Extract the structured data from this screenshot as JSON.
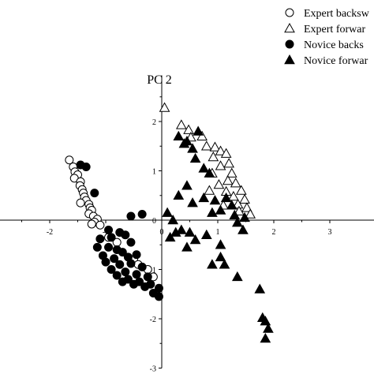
{
  "chart_data": {
    "type": "scatter",
    "title": "PC 2",
    "xlabel": "",
    "ylabel": "",
    "xlim": [
      -2.6,
      3
    ],
    "ylim": [
      -3,
      3
    ],
    "x_ticks": [
      "-2",
      "-1",
      "0",
      "1",
      "2",
      "3"
    ],
    "y_ticks": [
      "2",
      "1",
      "0",
      "-1",
      "-2",
      "-3"
    ],
    "grid": false,
    "legend_position": "top-right",
    "series": [
      {
        "name": "Expert backsw",
        "marker": "circle-open",
        "color": "#000000",
        "points": [
          [
            -1.65,
            1.22
          ],
          [
            -1.58,
            1.08
          ],
          [
            -1.55,
            0.98
          ],
          [
            -1.5,
            0.92
          ],
          [
            -1.56,
            0.85
          ],
          [
            -1.45,
            0.78
          ],
          [
            -1.46,
            0.7
          ],
          [
            -1.42,
            0.62
          ],
          [
            -1.4,
            0.55
          ],
          [
            -1.38,
            0.47
          ],
          [
            -1.35,
            0.4
          ],
          [
            -1.45,
            0.35
          ],
          [
            -1.3,
            0.32
          ],
          [
            -1.28,
            0.25
          ],
          [
            -1.25,
            0.2
          ],
          [
            -1.3,
            0.13
          ],
          [
            -1.22,
            0.08
          ],
          [
            -1.15,
            0.02
          ],
          [
            -1.2,
            -0.04
          ],
          [
            -1.1,
            -0.1
          ],
          [
            -1.25,
            -0.08
          ],
          [
            -0.95,
            -0.35
          ],
          [
            -0.8,
            -0.45
          ],
          [
            -0.5,
            -0.8
          ],
          [
            -0.42,
            -0.9
          ],
          [
            -0.25,
            -1.0
          ],
          [
            -0.15,
            -1.15
          ]
        ]
      },
      {
        "name": "Expert forwar",
        "marker": "triangle-open",
        "color": "#000000",
        "points": [
          [
            0.05,
            2.28
          ],
          [
            0.35,
            1.93
          ],
          [
            0.48,
            1.83
          ],
          [
            0.52,
            1.68
          ],
          [
            0.72,
            1.7
          ],
          [
            0.8,
            1.5
          ],
          [
            0.95,
            1.48
          ],
          [
            1.05,
            1.4
          ],
          [
            0.92,
            1.28
          ],
          [
            1.15,
            1.35
          ],
          [
            1.2,
            1.15
          ],
          [
            1.05,
            1.1
          ],
          [
            0.9,
            0.95
          ],
          [
            1.25,
            0.95
          ],
          [
            1.18,
            0.8
          ],
          [
            1.02,
            0.72
          ],
          [
            1.32,
            0.75
          ],
          [
            0.85,
            0.6
          ],
          [
            1.15,
            0.58
          ],
          [
            1.42,
            0.6
          ],
          [
            1.28,
            0.48
          ],
          [
            1.48,
            0.42
          ],
          [
            1.36,
            0.32
          ],
          [
            1.1,
            0.3
          ],
          [
            1.52,
            0.25
          ],
          [
            1.58,
            0.12
          ],
          [
            1.38,
            0.18
          ]
        ]
      },
      {
        "name": "Novice backs",
        "marker": "circle-filled",
        "color": "#000000",
        "points": [
          [
            -1.45,
            1.12
          ],
          [
            -1.35,
            1.08
          ],
          [
            -1.2,
            0.55
          ],
          [
            -0.35,
            0.12
          ],
          [
            -0.55,
            0.08
          ],
          [
            -0.95,
            -0.2
          ],
          [
            -0.75,
            -0.25
          ],
          [
            -0.65,
            -0.3
          ],
          [
            -0.9,
            -0.35
          ],
          [
            -1.1,
            -0.38
          ],
          [
            -0.55,
            -0.45
          ],
          [
            -1.15,
            -0.55
          ],
          [
            -0.95,
            -0.55
          ],
          [
            -0.8,
            -0.6
          ],
          [
            -0.7,
            -0.65
          ],
          [
            -1.05,
            -0.72
          ],
          [
            -0.85,
            -0.78
          ],
          [
            -0.6,
            -0.75
          ],
          [
            -0.45,
            -0.7
          ],
          [
            -1.0,
            -0.85
          ],
          [
            -0.75,
            -0.9
          ],
          [
            -0.55,
            -0.88
          ],
          [
            -0.35,
            -0.95
          ],
          [
            -0.9,
            -1.0
          ],
          [
            -0.65,
            -1.05
          ],
          [
            -0.45,
            -1.1
          ],
          [
            -0.25,
            -1.15
          ],
          [
            -0.8,
            -1.12
          ],
          [
            -0.6,
            -1.2
          ],
          [
            -0.4,
            -1.25
          ],
          [
            -0.2,
            -1.3
          ],
          [
            -0.05,
            -1.38
          ],
          [
            -0.15,
            -1.48
          ],
          [
            -0.05,
            -1.55
          ],
          [
            -0.3,
            -1.35
          ],
          [
            -0.5,
            -1.3
          ],
          [
            -0.7,
            -1.25
          ]
        ]
      },
      {
        "name": "Novice forwar",
        "marker": "triangle-filled",
        "color": "#000000",
        "points": [
          [
            0.3,
            1.7
          ],
          [
            0.45,
            1.6
          ],
          [
            0.55,
            1.45
          ],
          [
            0.65,
            1.8
          ],
          [
            0.4,
            1.55
          ],
          [
            0.6,
            1.25
          ],
          [
            0.75,
            1.05
          ],
          [
            0.85,
            0.95
          ],
          [
            0.45,
            0.7
          ],
          [
            0.3,
            0.5
          ],
          [
            0.55,
            0.35
          ],
          [
            0.75,
            0.45
          ],
          [
            0.95,
            0.4
          ],
          [
            1.15,
            0.45
          ],
          [
            1.25,
            0.3
          ],
          [
            1.05,
            0.2
          ],
          [
            0.9,
            0.15
          ],
          [
            1.3,
            0.1
          ],
          [
            1.48,
            0.05
          ],
          [
            0.1,
            0.15
          ],
          [
            0.2,
            0.0
          ],
          [
            0.35,
            -0.2
          ],
          [
            0.25,
            -0.25
          ],
          [
            0.15,
            -0.35
          ],
          [
            0.5,
            -0.25
          ],
          [
            0.6,
            -0.4
          ],
          [
            0.45,
            -0.55
          ],
          [
            0.8,
            -0.3
          ],
          [
            1.05,
            -0.5
          ],
          [
            1.35,
            -0.05
          ],
          [
            1.45,
            -0.2
          ],
          [
            1.05,
            -0.75
          ],
          [
            0.9,
            -0.9
          ],
          [
            1.12,
            -0.9
          ],
          [
            1.35,
            -1.15
          ],
          [
            1.75,
            -1.4
          ],
          [
            1.8,
            -1.98
          ],
          [
            1.85,
            -2.05
          ],
          [
            1.9,
            -2.2
          ],
          [
            1.85,
            -2.4
          ]
        ]
      }
    ]
  }
}
